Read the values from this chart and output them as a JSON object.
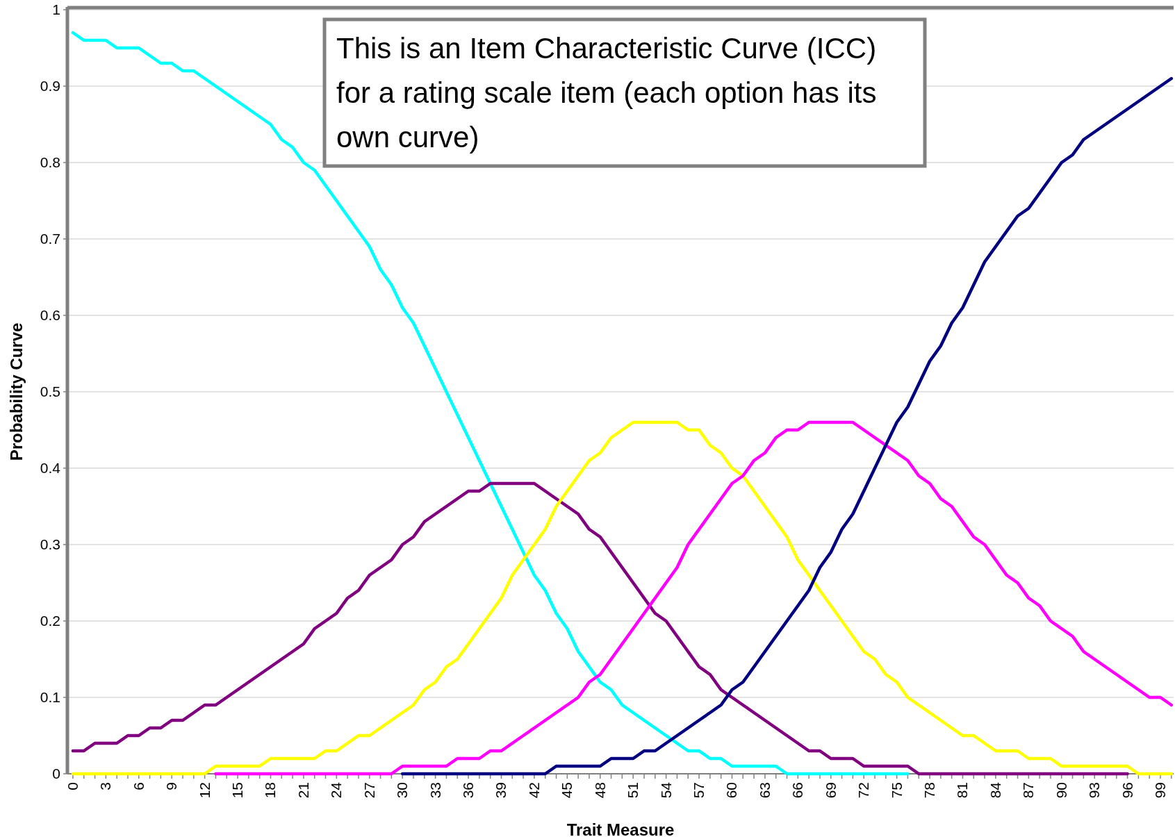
{
  "chart_data": {
    "type": "line",
    "xlabel": "Trait Measure",
    "ylabel": "Probability Curve",
    "annotations": [
      "This is an Item Characteristic Curve (ICC) for a rating scale item (each option has its own curve)"
    ],
    "x": [
      0,
      1,
      2,
      3,
      4,
      5,
      6,
      7,
      8,
      9,
      10,
      11,
      12,
      13,
      14,
      15,
      16,
      17,
      18,
      19,
      20,
      21,
      22,
      23,
      24,
      25,
      26,
      27,
      28,
      29,
      30,
      31,
      32,
      33,
      34,
      35,
      36,
      37,
      38,
      39,
      40,
      41,
      42,
      43,
      44,
      45,
      46,
      47,
      48,
      49,
      50,
      51,
      52,
      53,
      54,
      55,
      56,
      57,
      58,
      59,
      60,
      61,
      62,
      63,
      64,
      65,
      66,
      67,
      68,
      69,
      70,
      71,
      72,
      73,
      74,
      75,
      76,
      77,
      78,
      79,
      80,
      81,
      82,
      83,
      84,
      85,
      86,
      87,
      88,
      89,
      90,
      91,
      92,
      93,
      94,
      95,
      96,
      97,
      98,
      99,
      100
    ],
    "xlim": [
      -0.5,
      100.2
    ],
    "xticks": [
      0,
      {
        "value": 1,
        "label": null
      },
      {
        "value": 2,
        "label": null
      },
      3,
      {
        "value": 4,
        "label": null
      },
      {
        "value": 5,
        "label": null
      },
      6,
      {
        "value": 7,
        "label": null
      },
      {
        "value": 8,
        "label": null
      },
      9,
      {
        "value": 10,
        "label": null
      },
      {
        "value": 11,
        "label": null
      },
      12,
      {
        "value": 13,
        "label": null
      },
      {
        "value": 14,
        "label": null
      },
      15,
      {
        "value": 16,
        "label": null
      },
      {
        "value": 17,
        "label": null
      },
      18,
      {
        "value": 19,
        "label": null
      },
      {
        "value": 20,
        "label": null
      },
      21,
      {
        "value": 22,
        "label": null
      },
      {
        "value": 23,
        "label": null
      },
      24,
      {
        "value": 25,
        "label": null
      },
      {
        "value": 26,
        "label": null
      },
      27,
      {
        "value": 28,
        "label": null
      },
      {
        "value": 29,
        "label": null
      },
      30,
      {
        "value": 31,
        "label": null
      },
      {
        "value": 32,
        "label": null
      },
      33,
      {
        "value": 34,
        "label": null
      },
      {
        "value": 35,
        "label": null
      },
      36,
      {
        "value": 37,
        "label": null
      },
      {
        "value": 38,
        "label": null
      },
      39,
      {
        "value": 40,
        "label": null
      },
      {
        "value": 41,
        "label": null
      },
      42,
      {
        "value": 43,
        "label": null
      },
      {
        "value": 44,
        "label": null
      },
      45,
      {
        "value": 46,
        "label": null
      },
      {
        "value": 47,
        "label": null
      },
      48,
      {
        "value": 49,
        "label": null
      },
      {
        "value": 50,
        "label": null
      },
      51,
      {
        "value": 52,
        "label": null
      },
      {
        "value": 53,
        "label": null
      },
      54,
      {
        "value": 55,
        "label": null
      },
      {
        "value": 56,
        "label": null
      },
      57,
      {
        "value": 58,
        "label": null
      },
      {
        "value": 59,
        "label": null
      },
      60,
      {
        "value": 61,
        "label": null
      },
      {
        "value": 62,
        "label": null
      },
      63,
      {
        "value": 64,
        "label": null
      },
      {
        "value": 65,
        "label": null
      },
      66,
      {
        "value": 67,
        "label": null
      },
      {
        "value": 68,
        "label": null
      },
      69,
      {
        "value": 70,
        "label": null
      },
      {
        "value": 71,
        "label": null
      },
      72,
      {
        "value": 73,
        "label": null
      },
      {
        "value": 74,
        "label": null
      },
      75,
      {
        "value": 76,
        "label": null
      },
      {
        "value": 77,
        "label": null
      },
      78,
      {
        "value": 79,
        "label": null
      },
      {
        "value": 80,
        "label": null
      },
      81,
      {
        "value": 82,
        "label": null
      },
      {
        "value": 83,
        "label": null
      },
      84,
      {
        "value": 85,
        "label": null
      },
      {
        "value": 86,
        "label": null
      },
      87,
      {
        "value": 88,
        "label": null
      },
      {
        "value": 89,
        "label": null
      },
      90,
      {
        "value": 91,
        "label": null
      },
      {
        "value": 92,
        "label": null
      },
      93,
      {
        "value": 94,
        "label": null
      },
      {
        "value": 95,
        "label": null
      },
      96,
      {
        "value": 97,
        "label": null
      },
      {
        "value": 98,
        "label": null
      },
      99,
      {
        "value": 100,
        "label": null
      }
    ],
    "ylim": [
      0,
      1
    ],
    "yticks": [
      0,
      0.1,
      0.2,
      0.3,
      0.4,
      0.5,
      0.6,
      0.7,
      0.8,
      0.9,
      1
    ],
    "grid": "y",
    "marker": "none",
    "line_style": "solid",
    "series": [
      {
        "color": "#00ffff",
        "values": [
          0.97,
          0.96,
          0.96,
          0.96,
          0.95,
          0.95,
          0.95,
          0.94,
          0.93,
          0.93,
          0.92,
          0.92,
          0.91,
          0.9,
          0.89,
          0.88,
          0.87,
          0.86,
          0.85,
          0.83,
          0.82,
          0.8,
          0.79,
          0.77,
          0.75,
          0.73,
          0.71,
          0.69,
          0.66,
          0.64,
          0.61,
          0.59,
          0.56,
          0.53,
          0.5,
          0.47,
          0.44,
          0.41,
          0.38,
          0.35,
          0.32,
          0.29,
          0.26,
          0.24,
          0.21,
          0.19,
          0.16,
          0.14,
          0.12,
          0.11,
          0.09,
          0.08,
          0.07,
          0.06,
          0.05,
          0.04,
          0.03,
          0.03,
          0.02,
          0.02,
          0.01,
          0.01,
          0.01,
          0.01,
          0.01,
          0,
          0,
          0,
          0,
          0,
          0,
          0,
          0,
          0,
          0,
          0,
          0,
          null,
          null,
          null,
          null,
          null,
          null,
          null,
          null,
          null,
          null,
          null,
          null,
          null,
          null,
          null,
          null,
          null,
          null,
          null,
          null,
          null,
          null,
          null,
          null
        ]
      },
      {
        "color": "#800080",
        "values": [
          0.03,
          0.03,
          0.04,
          0.04,
          0.04,
          0.05,
          0.05,
          0.06,
          0.06,
          0.07,
          0.07,
          0.08,
          0.09,
          0.09,
          0.1,
          0.11,
          0.12,
          0.13,
          0.14,
          0.15,
          0.16,
          0.17,
          0.19,
          0.2,
          0.21,
          0.23,
          0.24,
          0.26,
          0.27,
          0.28,
          0.3,
          0.31,
          0.33,
          0.34,
          0.35,
          0.36,
          0.37,
          0.37,
          0.38,
          0.38,
          0.38,
          0.38,
          0.38,
          0.37,
          0.36,
          0.35,
          0.34,
          0.32,
          0.31,
          0.29,
          0.27,
          0.25,
          0.23,
          0.21,
          0.2,
          0.18,
          0.16,
          0.14,
          0.13,
          0.11,
          0.1,
          0.09,
          0.08,
          0.07,
          0.06,
          0.05,
          0.04,
          0.03,
          0.03,
          0.02,
          0.02,
          0.02,
          0.01,
          0.01,
          0.01,
          0.01,
          0.01,
          0,
          0,
          0,
          0,
          0,
          0,
          0,
          0,
          0,
          0,
          0,
          0,
          0,
          0,
          0,
          0,
          0,
          0,
          0,
          0,
          null,
          null,
          null,
          null
        ]
      },
      {
        "color": "#ffff00",
        "values": [
          0,
          0,
          0,
          0,
          0,
          0,
          0,
          0,
          0,
          0,
          0,
          0,
          0,
          0.01,
          0.01,
          0.01,
          0.01,
          0.01,
          0.02,
          0.02,
          0.02,
          0.02,
          0.02,
          0.03,
          0.03,
          0.04,
          0.05,
          0.05,
          0.06,
          0.07,
          0.08,
          0.09,
          0.11,
          0.12,
          0.14,
          0.15,
          0.17,
          0.19,
          0.21,
          0.23,
          0.26,
          0.28,
          0.3,
          0.32,
          0.35,
          0.37,
          0.39,
          0.41,
          0.42,
          0.44,
          0.45,
          0.46,
          0.46,
          0.46,
          0.46,
          0.46,
          0.45,
          0.45,
          0.43,
          0.42,
          0.4,
          0.39,
          0.37,
          0.35,
          0.33,
          0.31,
          0.28,
          0.26,
          0.24,
          0.22,
          0.2,
          0.18,
          0.16,
          0.15,
          0.13,
          0.12,
          0.1,
          0.09,
          0.08,
          0.07,
          0.06,
          0.05,
          0.05,
          0.04,
          0.03,
          0.03,
          0.03,
          0.02,
          0.02,
          0.02,
          0.01,
          0.01,
          0.01,
          0.01,
          0.01,
          0.01,
          0.01,
          0,
          0,
          0,
          0
        ]
      },
      {
        "color": "#ff00ff",
        "values": [
          null,
          null,
          null,
          null,
          null,
          null,
          null,
          null,
          null,
          null,
          null,
          null,
          null,
          0,
          0,
          0,
          0,
          0,
          0,
          0,
          0,
          0,
          0,
          0,
          0,
          0,
          0,
          0,
          0,
          0,
          0.01,
          0.01,
          0.01,
          0.01,
          0.01,
          0.02,
          0.02,
          0.02,
          0.03,
          0.03,
          0.04,
          0.05,
          0.06,
          0.07,
          0.08,
          0.09,
          0.1,
          0.12,
          0.13,
          0.15,
          0.17,
          0.19,
          0.21,
          0.23,
          0.25,
          0.27,
          0.3,
          0.32,
          0.34,
          0.36,
          0.38,
          0.39,
          0.41,
          0.42,
          0.44,
          0.45,
          0.45,
          0.46,
          0.46,
          0.46,
          0.46,
          0.46,
          0.45,
          0.44,
          0.43,
          0.42,
          0.41,
          0.39,
          0.38,
          0.36,
          0.35,
          0.33,
          0.31,
          0.3,
          0.28,
          0.26,
          0.25,
          0.23,
          0.22,
          0.2,
          0.19,
          0.18,
          0.16,
          0.15,
          0.14,
          0.13,
          0.12,
          0.11,
          0.1,
          0.1,
          0.09
        ]
      },
      {
        "color": "#000080",
        "values": [
          null,
          null,
          null,
          null,
          null,
          null,
          null,
          null,
          null,
          null,
          null,
          null,
          null,
          null,
          null,
          null,
          null,
          null,
          null,
          null,
          null,
          null,
          null,
          null,
          null,
          null,
          null,
          null,
          null,
          null,
          0,
          0,
          0,
          0,
          0,
          0,
          0,
          0,
          0,
          0,
          0,
          0,
          0,
          0,
          0.01,
          0.01,
          0.01,
          0.01,
          0.01,
          0.02,
          0.02,
          0.02,
          0.03,
          0.03,
          0.04,
          0.05,
          0.06,
          0.07,
          0.08,
          0.09,
          0.11,
          0.12,
          0.14,
          0.16,
          0.18,
          0.2,
          0.22,
          0.24,
          0.27,
          0.29,
          0.32,
          0.34,
          0.37,
          0.4,
          0.43,
          0.46,
          0.48,
          0.51,
          0.54,
          0.56,
          0.59,
          0.61,
          0.64,
          0.67,
          0.69,
          0.71,
          0.73,
          0.74,
          0.76,
          0.78,
          0.8,
          0.81,
          0.83,
          0.84,
          0.85,
          0.86,
          0.87,
          0.88,
          0.89,
          0.9,
          0.91
        ]
      }
    ]
  }
}
